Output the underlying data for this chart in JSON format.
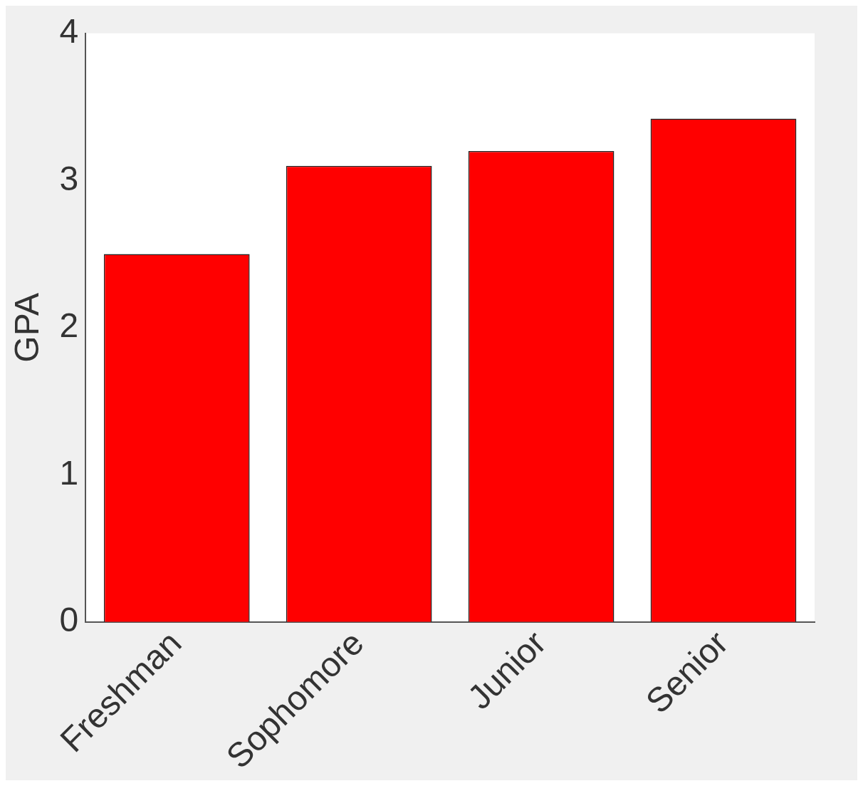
{
  "chart_data": {
    "type": "bar",
    "ylabel": "GPA",
    "categories": [
      "Freshman",
      "Sophomore",
      "Junior",
      "Senior"
    ],
    "values": [
      2.5,
      3.1,
      3.2,
      3.42
    ],
    "color": "#ff0000",
    "ylim": [
      0,
      4
    ],
    "yticks": [
      0,
      1,
      2,
      3,
      4
    ],
    "grid": false,
    "legend": false
  }
}
